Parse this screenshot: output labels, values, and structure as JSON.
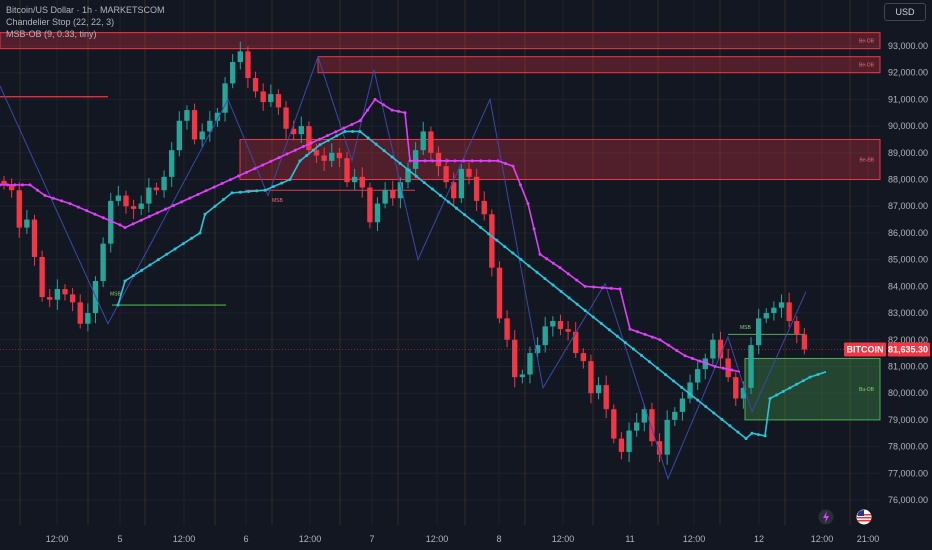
{
  "header": {
    "title": "Bitcoin/US Dollar · 1h · MARKETSCOM",
    "indicator1": "Chandelier Stop (22, 22, 3)",
    "indicator2": "MSB-OB (9, 0.33, tiny)",
    "currency": "USD"
  },
  "chart_data": {
    "type": "candlestick",
    "symbol": "BITCOIN",
    "last_price": "81,635.30",
    "ylim": [
      75400,
      94000
    ],
    "y_ticks": [
      "93,000.00",
      "92,000.00",
      "91,000.00",
      "90,000.00",
      "89,000.00",
      "88,000.00",
      "87,000.00",
      "86,000.00",
      "85,000.00",
      "84,000.00",
      "83,000.00",
      "82,000.00",
      "81,000.00",
      "80,000.00",
      "79,000.00",
      "78,000.00",
      "77,000.00",
      "76,000.00"
    ],
    "x_ticks": [
      "12:00",
      "5",
      "12:00",
      "6",
      "12:00",
      "7",
      "12:00",
      "8",
      "12:00",
      "11",
      "12:00",
      "12",
      "12:00",
      "21:00"
    ],
    "colors": {
      "up": "#26a69a",
      "down": "#f23645",
      "stop_up": "#26c6da",
      "stop_down": "#e040fb",
      "zigzag": "#3949ab",
      "background": "#131722"
    },
    "close_path": [
      87800,
      87600,
      86200,
      86500,
      85100,
      83600,
      83500,
      83900,
      83700,
      83400,
      82600,
      83000,
      84200,
      85600,
      87200,
      87400,
      87000,
      86900,
      87100,
      87700,
      87600,
      88100,
      89100,
      90200,
      90600,
      89500,
      89800,
      90200,
      90500,
      91600,
      92400,
      92800,
      91800,
      91300,
      90900,
      91200,
      90700,
      89900,
      89700,
      90000,
      89100,
      88900,
      88700,
      89000,
      88800,
      87900,
      88100,
      87700,
      86400,
      87100,
      87600,
      87300,
      87900,
      88400,
      89100,
      89800,
      89000,
      88500,
      87900,
      87300,
      88400,
      88100,
      87200,
      86700,
      84700,
      82800,
      82000,
      80600,
      80700,
      81500,
      81800,
      82500,
      82700,
      82400,
      82300,
      81500,
      81200,
      80000,
      80300,
      79400,
      78300,
      77800,
      78600,
      78900,
      79400,
      78200,
      77700,
      79000,
      79300,
      79800,
      80400,
      80900,
      81300,
      82000,
      81300,
      80600,
      79800,
      80200,
      81800,
      82800,
      83000,
      83200,
      83400,
      82700,
      82200,
      81635
    ],
    "chandelier_up": [
      [
        118,
        83300
      ],
      [
        125,
        84200
      ],
      [
        150,
        84800
      ],
      [
        175,
        85400
      ],
      [
        200,
        86000
      ],
      [
        205,
        86700
      ],
      [
        215,
        87000
      ],
      [
        232,
        87500
      ],
      [
        265,
        87600
      ],
      [
        290,
        88000
      ],
      [
        300,
        88700
      ],
      [
        320,
        89300
      ],
      [
        345,
        89800
      ],
      [
        360,
        89800
      ],
      [
        746,
        78300
      ],
      [
        752,
        78500
      ],
      [
        765,
        78400
      ],
      [
        770,
        79800
      ],
      [
        790,
        80200
      ],
      [
        810,
        80600
      ],
      [
        826,
        80800
      ]
    ],
    "chandelier_down": [
      [
        0,
        87800
      ],
      [
        30,
        87800
      ],
      [
        45,
        87400
      ],
      [
        70,
        87100
      ],
      [
        95,
        86700
      ],
      [
        120,
        86300
      ],
      [
        125,
        86200
      ],
      [
        360,
        90200
      ],
      [
        375,
        91000
      ],
      [
        392,
        90600
      ],
      [
        405,
        90500
      ],
      [
        410,
        88700
      ],
      [
        455,
        88700
      ],
      [
        498,
        88700
      ],
      [
        513,
        88500
      ],
      [
        528,
        87100
      ],
      [
        540,
        85200
      ],
      [
        560,
        84700
      ],
      [
        585,
        84000
      ],
      [
        620,
        83900
      ],
      [
        630,
        82400
      ],
      [
        660,
        82000
      ],
      [
        685,
        81400
      ],
      [
        715,
        81000
      ],
      [
        740,
        80800
      ]
    ],
    "zigzag": [
      [
        0,
        91500
      ],
      [
        108,
        82600
      ],
      [
        228,
        91000
      ],
      [
        268,
        87400
      ],
      [
        318,
        92600
      ],
      [
        352,
        88700
      ],
      [
        374,
        92100
      ],
      [
        418,
        85000
      ],
      [
        490,
        91000
      ],
      [
        543,
        80200
      ],
      [
        605,
        84100
      ],
      [
        668,
        76800
      ],
      [
        728,
        82100
      ],
      [
        752,
        79300
      ],
      [
        806,
        83800
      ]
    ],
    "bear_ob": [
      {
        "label": "Be-OB",
        "top": 93500,
        "bottom": 92900,
        "x_start": 0
      },
      {
        "label": "Be-OB",
        "top": 92600,
        "bottom": 92000,
        "x_start": 318
      },
      {
        "label": "Be-BB",
        "top": 89500,
        "bottom": 88000,
        "x_start": 240
      }
    ],
    "bull_ob": [
      {
        "label": "Bu-OB",
        "top": 81300,
        "bottom": 79000,
        "x_start": 745
      }
    ],
    "msb_labels": [
      {
        "text": "MSB",
        "x": 110,
        "price": 83650
      },
      {
        "text": "MSB",
        "x": 272,
        "price": 87150
      },
      {
        "text": "MSB",
        "x": 740,
        "price": 82400
      }
    ]
  }
}
